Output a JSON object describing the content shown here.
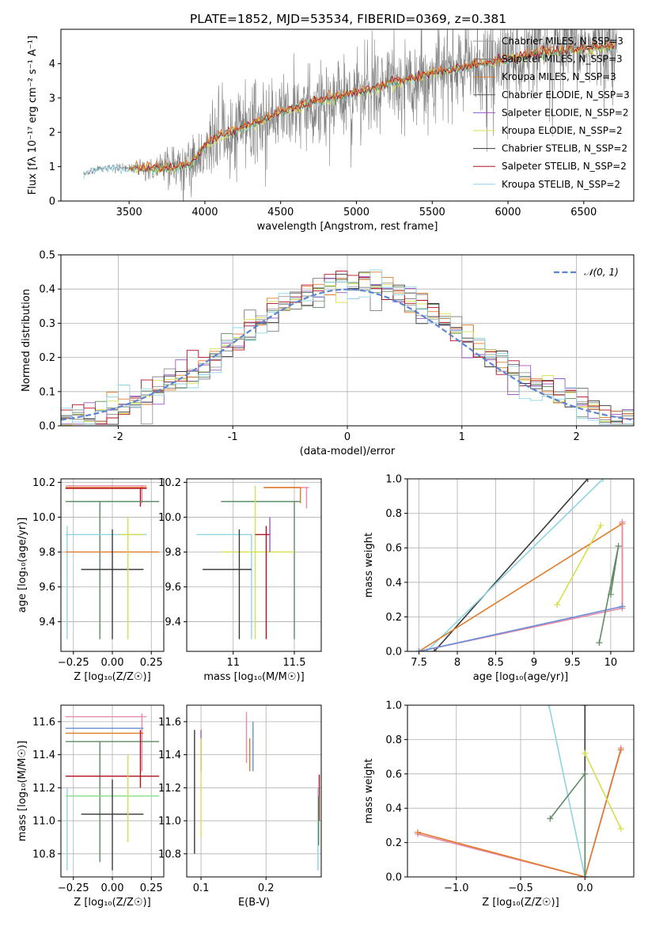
{
  "figure": {
    "title": "PLATE=1852, MJD=53534, FIBERID=0369, z=0.381"
  },
  "colors": {
    "chabrier_miles": "#9a9a9a",
    "salpeter_miles": "#7a7a7a",
    "kroupa_miles": "#e07b2a",
    "chabrier_elodie": "#5a5a5a",
    "salpeter_elodie": "#9b59c4",
    "kroupa_elodie": "#d6e04a",
    "chabrier_stelib": "#3a3a3a",
    "salpeter_stelib": "#b01020",
    "kroupa_stelib": "#8fd3e6",
    "extra_green": "#5e8a65",
    "extra_pink": "#e88aa6",
    "extra_blue": "#6a8fd8",
    "extra_lightgreen": "#8fe08f",
    "gaussian": "#5b84d1"
  },
  "chart_data": [
    {
      "id": "spectrum",
      "type": "line",
      "xlabel": "wavelength [Angstrom, rest frame]",
      "ylabel": "Flux [fλ 10⁻¹⁷ erg cm⁻² s⁻¹ A⁻¹]",
      "xlim": [
        3050,
        6830
      ],
      "ylim": [
        0,
        5
      ],
      "xticks": [
        3500,
        4000,
        4500,
        5000,
        5500,
        6000,
        6500
      ],
      "yticks": [
        0,
        1,
        2,
        3,
        4
      ],
      "legend_position": "top-right",
      "legend": [
        "Chabrier MILES, N_SSP=3",
        "Salpeter MILES, N_SSP=3",
        "Kroupa MILES, N_SSP=3",
        "Chabrier ELODIE, N_SSP=3",
        "Salpeter ELODIE, N_SSP=2",
        "Kroupa ELODIE, N_SSP=2",
        "Chabrier STELIB, N_SSP=2",
        "Salpeter STELIB, N_SSP=2",
        "Kroupa STELIB, N_SSP=2"
      ],
      "continuum": {
        "x": [
          3200,
          3300,
          3500,
          3700,
          3900,
          4000,
          4100,
          4300,
          4500,
          4700,
          5000,
          5300,
          5600,
          5900,
          6200,
          6500,
          6700
        ],
        "y": [
          0.8,
          0.95,
          0.95,
          0.95,
          1.05,
          1.6,
          1.9,
          2.2,
          2.6,
          2.85,
          3.15,
          3.5,
          3.8,
          4.05,
          4.3,
          4.45,
          4.5
        ]
      },
      "data_start": 3200,
      "data_end": 6720,
      "noise_rises_from": 3500
    },
    {
      "id": "residuals",
      "type": "histogram",
      "xlabel": "(data-model)/error",
      "ylabel": "Normed distribution",
      "xlim": [
        -2.5,
        2.5
      ],
      "ylim": [
        0,
        0.5
      ],
      "xticks": [
        -2,
        -1,
        0,
        1,
        2
      ],
      "yticks": [
        0.0,
        0.1,
        0.2,
        0.3,
        0.4,
        0.5
      ],
      "grid": true,
      "legend_position": "top-right",
      "legend": [
        "𝒩(0, 1)"
      ],
      "gaussian": {
        "mean": 0,
        "sigma": 1
      },
      "bin_width": 0.1,
      "hist_series_count": 9
    },
    {
      "id": "age_vs_Z",
      "type": "errorbar",
      "xlabel": "Z [log₁₀(Z/Z☉)]",
      "ylabel": "age  [log₁₀(age/yr)]",
      "xlim": [
        -0.33,
        0.33
      ],
      "ylim": [
        9.23,
        10.22
      ],
      "xticks": [
        -0.25,
        0.0,
        0.25
      ],
      "xticklabels": [
        "−0.25",
        "0.00",
        "0.25"
      ],
      "yticks": [
        9.4,
        9.6,
        9.8,
        10.0,
        10.2
      ],
      "grid": true,
      "bars": [
        {
          "color": "extra_pink",
          "h": [
            -0.3,
            0.22,
            10.18
          ],
          "v": [
            0.19,
            10.08,
            10.18
          ]
        },
        {
          "color": "kroupa_miles",
          "h": [
            -0.3,
            0.22,
            10.17
          ]
        },
        {
          "color": "salpeter_stelib",
          "h": [
            -0.3,
            0.22,
            10.165
          ],
          "v": [
            0.18,
            10.06,
            10.17
          ]
        },
        {
          "color": "extra_green",
          "h": [
            -0.3,
            0.3,
            10.09
          ],
          "v": [
            -0.08,
            9.3,
            10.09
          ]
        },
        {
          "color": "kroupa_stelib",
          "h": [
            -0.3,
            0.22,
            9.9
          ],
          "v": [
            -0.29,
            9.3,
            9.95
          ]
        },
        {
          "color": "kroupa_miles",
          "h": [
            -0.3,
            0.3,
            9.8
          ]
        },
        {
          "color": "chabrier_stelib",
          "h": [
            -0.2,
            0.2,
            9.7
          ],
          "v": [
            0.0,
            9.3,
            9.93
          ]
        },
        {
          "color": "kroupa_elodie",
          "h": [
            0.05,
            0.2,
            9.9
          ],
          "v": [
            0.1,
            9.3,
            10.0
          ]
        }
      ]
    },
    {
      "id": "age_vs_mass",
      "type": "errorbar",
      "xlabel": "mass [log₁₀(M/M☉)]",
      "ylabel": "",
      "xlim": [
        10.62,
        11.72
      ],
      "ylim": [
        9.23,
        10.22
      ],
      "xticks": [
        11.0,
        11.5
      ],
      "yticks": [
        9.4,
        9.6,
        9.8,
        10.0,
        10.2
      ],
      "grid": true,
      "bars": [
        {
          "color": "extra_pink",
          "h": [
            11.25,
            11.62,
            10.17
          ],
          "v": [
            11.6,
            10.05,
            10.17
          ]
        },
        {
          "color": "kroupa_miles",
          "h": [
            11.25,
            11.55,
            10.17
          ],
          "v": [
            11.55,
            10.08,
            10.17
          ]
        },
        {
          "color": "extra_green",
          "h": [
            10.9,
            11.55,
            10.09
          ],
          "v": [
            11.5,
            9.3,
            10.09
          ]
        },
        {
          "color": "kroupa_stelib",
          "h": [
            10.7,
            11.15,
            9.9
          ],
          "v": [
            11.15,
            9.3,
            9.9
          ]
        },
        {
          "color": "kroupa_elodie",
          "h": [
            10.9,
            11.5,
            9.8
          ],
          "v": [
            11.18,
            9.3,
            10.18
          ]
        },
        {
          "color": "salpeter_stelib",
          "h": [
            11.18,
            11.3,
            9.9
          ],
          "v": [
            11.27,
            9.3,
            9.95
          ]
        },
        {
          "color": "chabrier_stelib",
          "h": [
            10.75,
            11.15,
            9.7
          ],
          "v": [
            11.05,
            9.3,
            9.93
          ]
        },
        {
          "color": "salpeter_elodie",
          "v": [
            11.3,
            9.8,
            10.0
          ]
        }
      ]
    },
    {
      "id": "massweight_vs_age",
      "type": "line",
      "xlabel": "age  [log₁₀(age/yr)]",
      "ylabel": "mass weight",
      "xlim": [
        7.35,
        10.3
      ],
      "ylim": [
        0,
        1
      ],
      "xticks": [
        7.5,
        8.0,
        8.5,
        9.0,
        9.5,
        10.0
      ],
      "yticks": [
        0.0,
        0.2,
        0.4,
        0.6,
        0.8,
        1.0
      ],
      "grid": true,
      "series": [
        {
          "color": "chabrier_stelib",
          "x": [
            7.7,
            9.7
          ],
          "y": [
            0.0,
            1.0
          ]
        },
        {
          "color": "kroupa_stelib",
          "x": [
            7.6,
            9.9
          ],
          "y": [
            0.0,
            1.0
          ]
        },
        {
          "color": "kroupa_miles",
          "x": [
            7.5,
            10.15,
            10.15
          ],
          "y": [
            0.0,
            0.74,
            0.26
          ]
        },
        {
          "color": "extra_pink",
          "x": [
            7.5,
            10.15,
            10.15
          ],
          "y": [
            0.0,
            0.25,
            0.75
          ]
        },
        {
          "color": "extra_blue",
          "x": [
            7.5,
            10.15
          ],
          "y": [
            0.0,
            0.26
          ]
        },
        {
          "color": "kroupa_elodie",
          "x": [
            9.3,
            9.87
          ],
          "y": [
            0.27,
            0.73
          ]
        },
        {
          "color": "extra_green",
          "x": [
            9.85,
            10.1,
            10.0
          ],
          "y": [
            0.05,
            0.61,
            0.33
          ]
        }
      ]
    },
    {
      "id": "mass_vs_Z",
      "type": "errorbar",
      "xlabel": "Z [log₁₀(Z/Z☉)]",
      "ylabel": "mass [log₁₀(M/M☉)]",
      "xlim": [
        -0.33,
        0.33
      ],
      "ylim": [
        10.66,
        11.7
      ],
      "xticks": [
        -0.25,
        0.0,
        0.25
      ],
      "xticklabels": [
        "−0.25",
        "0.00",
        "0.25"
      ],
      "yticks": [
        10.8,
        11.0,
        11.2,
        11.4,
        11.6
      ],
      "grid": true,
      "bars": [
        {
          "color": "extra_pink",
          "h": [
            -0.3,
            0.22,
            11.63
          ],
          "v": [
            0.19,
            11.3,
            11.65
          ]
        },
        {
          "color": "extra_blue",
          "h": [
            -0.3,
            0.2,
            11.56
          ]
        },
        {
          "color": "kroupa_miles",
          "h": [
            -0.3,
            0.2,
            11.53
          ]
        },
        {
          "color": "extra_green",
          "h": [
            -0.3,
            0.3,
            11.48
          ],
          "v": [
            -0.08,
            10.75,
            11.48
          ]
        },
        {
          "color": "salpeter_stelib",
          "h": [
            -0.3,
            0.3,
            11.27
          ],
          "v": [
            0.18,
            11.2,
            11.55
          ]
        },
        {
          "color": "extra_lightgreen",
          "h": [
            -0.3,
            0.3,
            11.15
          ]
        },
        {
          "color": "chabrier_stelib",
          "h": [
            -0.2,
            0.2,
            11.04
          ],
          "v": [
            0.0,
            10.7,
            11.25
          ]
        },
        {
          "color": "kroupa_elodie",
          "v": [
            0.1,
            10.87,
            11.4
          ]
        },
        {
          "color": "kroupa_stelib",
          "v": [
            -0.29,
            10.7,
            11.2
          ]
        }
      ]
    },
    {
      "id": "mass_vs_ebv",
      "type": "errorbar",
      "xlabel": "E(B-V)",
      "ylabel": "",
      "xlim": [
        0.078,
        0.285
      ],
      "ylim": [
        10.66,
        11.7
      ],
      "xticks": [
        0.1,
        0.2
      ],
      "yticks": [
        10.8,
        11.0,
        11.2,
        11.4,
        11.6
      ],
      "grid": true,
      "bars": [
        {
          "color": "chabrier_stelib",
          "v": [
            0.09,
            10.8,
            11.55
          ]
        },
        {
          "color": "salpeter_elodie",
          "v": [
            0.1,
            11.3,
            11.55
          ]
        },
        {
          "color": "kroupa_elodie",
          "v": [
            0.1,
            10.9,
            11.5
          ]
        },
        {
          "color": "extra_pink",
          "v": [
            0.17,
            11.35,
            11.66
          ]
        },
        {
          "color": "kroupa_miles",
          "v": [
            0.175,
            11.3,
            11.5
          ]
        },
        {
          "color": "extra_blue",
          "v": [
            0.18,
            11.3,
            11.6
          ]
        },
        {
          "color": "salpeter_stelib",
          "v": [
            0.282,
            11.0,
            11.28
          ]
        },
        {
          "color": "kroupa_stelib",
          "v": [
            0.28,
            10.7,
            11.2
          ]
        },
        {
          "color": "extra_green",
          "v": [
            0.281,
            10.85,
            11.15
          ]
        }
      ]
    },
    {
      "id": "massweight_vs_Z",
      "type": "line",
      "xlabel": "Z [log₁₀(Z/Z☉)]",
      "ylabel": "mass weight",
      "xlim": [
        -1.38,
        0.38
      ],
      "ylim": [
        0,
        1
      ],
      "xticks": [
        -1.0,
        -0.5,
        0.0
      ],
      "xticklabels": [
        "−1.0",
        "−0.5",
        "0.0"
      ],
      "yticks": [
        0.0,
        0.2,
        0.4,
        0.6,
        0.8,
        1.0
      ],
      "grid": true,
      "series": [
        {
          "color": "chabrier_stelib",
          "x": [
            0.0,
            0.0
          ],
          "y": [
            0.0,
            1.0
          ]
        },
        {
          "color": "kroupa_stelib",
          "x": [
            -0.28,
            0.0
          ],
          "y": [
            1.0,
            0.0
          ]
        },
        {
          "color": "extra_pink",
          "x": [
            -1.3,
            0.0,
            0.28
          ],
          "y": [
            0.25,
            0.0,
            0.75
          ]
        },
        {
          "color": "kroupa_miles",
          "x": [
            -1.3,
            0.0,
            0.28
          ],
          "y": [
            0.26,
            0.0,
            0.74
          ]
        },
        {
          "color": "kroupa_elodie",
          "x": [
            0.0,
            0.28
          ],
          "y": [
            0.72,
            0.28
          ]
        },
        {
          "color": "extra_green",
          "x": [
            -0.27,
            0.0,
            0.0
          ],
          "y": [
            0.34,
            0.6,
            0.0
          ]
        }
      ]
    }
  ]
}
